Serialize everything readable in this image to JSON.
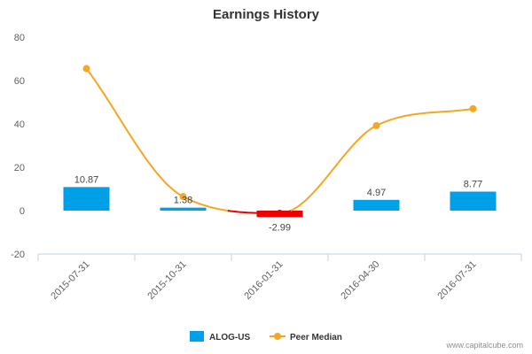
{
  "chart_data": {
    "type": "bar",
    "title": "Earnings History",
    "xlabel": "",
    "ylabel": "",
    "categories": [
      "2015-07-31",
      "2015-10-31",
      "2016-01-31",
      "2016-04-30",
      "2016-07-31"
    ],
    "ylim": [
      -20,
      80
    ],
    "yticks": [
      -20,
      0,
      20,
      40,
      60,
      80
    ],
    "grid": false,
    "legend_position": "bottom-center",
    "series": [
      {
        "name": "ALOG-US",
        "kind": "bar",
        "values": [
          10.87,
          1.38,
          -2.99,
          4.97,
          8.77
        ],
        "labels": [
          "10.87",
          "1.38",
          "-2.99",
          "4.97",
          "8.77"
        ],
        "color": "#00a0e8",
        "negative_color": "#ee0000"
      },
      {
        "name": "Peer Median",
        "kind": "line",
        "values": [
          65.5,
          6.5,
          -1.2,
          39.2,
          47.0
        ],
        "color": "#f5a623",
        "negative_color": "#ee0000"
      }
    ]
  },
  "credit": "www.capitalcube.com"
}
